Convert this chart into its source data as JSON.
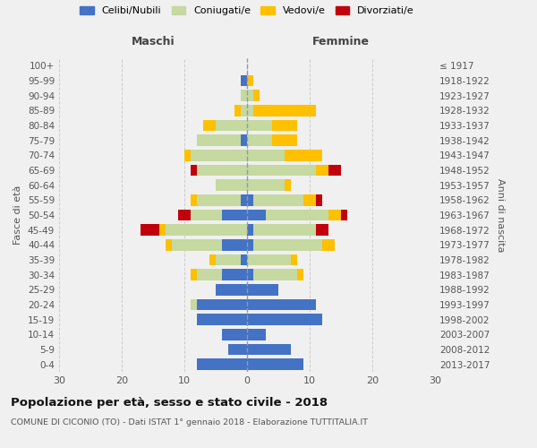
{
  "age_groups": [
    "0-4",
    "5-9",
    "10-14",
    "15-19",
    "20-24",
    "25-29",
    "30-34",
    "35-39",
    "40-44",
    "45-49",
    "50-54",
    "55-59",
    "60-64",
    "65-69",
    "70-74",
    "75-79",
    "80-84",
    "85-89",
    "90-94",
    "95-99",
    "100+"
  ],
  "birth_years": [
    "2013-2017",
    "2008-2012",
    "2003-2007",
    "1998-2002",
    "1993-1997",
    "1988-1992",
    "1983-1987",
    "1978-1982",
    "1973-1977",
    "1968-1972",
    "1963-1967",
    "1958-1962",
    "1953-1957",
    "1948-1952",
    "1943-1947",
    "1938-1942",
    "1933-1937",
    "1928-1932",
    "1923-1927",
    "1918-1922",
    "≤ 1917"
  ],
  "male_celibi": [
    8,
    3,
    4,
    8,
    8,
    5,
    4,
    1,
    4,
    0,
    4,
    1,
    0,
    0,
    0,
    1,
    0,
    0,
    0,
    1,
    0
  ],
  "male_coniugati": [
    0,
    0,
    0,
    0,
    1,
    0,
    4,
    4,
    8,
    13,
    5,
    7,
    5,
    8,
    9,
    7,
    5,
    1,
    1,
    0,
    0
  ],
  "male_vedovi": [
    0,
    0,
    0,
    0,
    0,
    0,
    1,
    1,
    1,
    1,
    0,
    1,
    0,
    0,
    1,
    0,
    2,
    1,
    0,
    0,
    0
  ],
  "male_divorziati": [
    0,
    0,
    0,
    0,
    0,
    0,
    0,
    0,
    0,
    3,
    2,
    0,
    0,
    1,
    0,
    0,
    0,
    0,
    0,
    0,
    0
  ],
  "female_nubili": [
    9,
    7,
    3,
    12,
    11,
    5,
    1,
    0,
    1,
    1,
    3,
    1,
    0,
    0,
    0,
    0,
    0,
    0,
    0,
    0,
    0
  ],
  "female_coniugate": [
    0,
    0,
    0,
    0,
    0,
    0,
    7,
    7,
    11,
    10,
    10,
    8,
    6,
    11,
    6,
    4,
    4,
    1,
    1,
    0,
    0
  ],
  "female_vedove": [
    0,
    0,
    0,
    0,
    0,
    0,
    1,
    1,
    2,
    0,
    2,
    2,
    1,
    2,
    6,
    4,
    4,
    10,
    1,
    1,
    0
  ],
  "female_divorziate": [
    0,
    0,
    0,
    0,
    0,
    0,
    0,
    0,
    0,
    2,
    1,
    1,
    0,
    2,
    0,
    0,
    0,
    0,
    0,
    0,
    0
  ],
  "color_celibi": "#4472c4",
  "color_coniugati": "#c5d9a0",
  "color_vedovi": "#ffc000",
  "color_divorziati": "#c0000c",
  "xlim": 30,
  "title": "Popolazione per età, sesso e stato civile - 2018",
  "subtitle": "COMUNE DI CICONIO (TO) - Dati ISTAT 1° gennaio 2018 - Elaborazione TUTTITALIA.IT",
  "ylabel_left": "Fasce di età",
  "ylabel_right": "Anni di nascita",
  "label_maschi": "Maschi",
  "label_femmine": "Femmine",
  "legend_labels": [
    "Celibi/Nubili",
    "Coniugati/e",
    "Vedovi/e",
    "Divorziati/e"
  ],
  "bg_color": "#f0f0f0"
}
